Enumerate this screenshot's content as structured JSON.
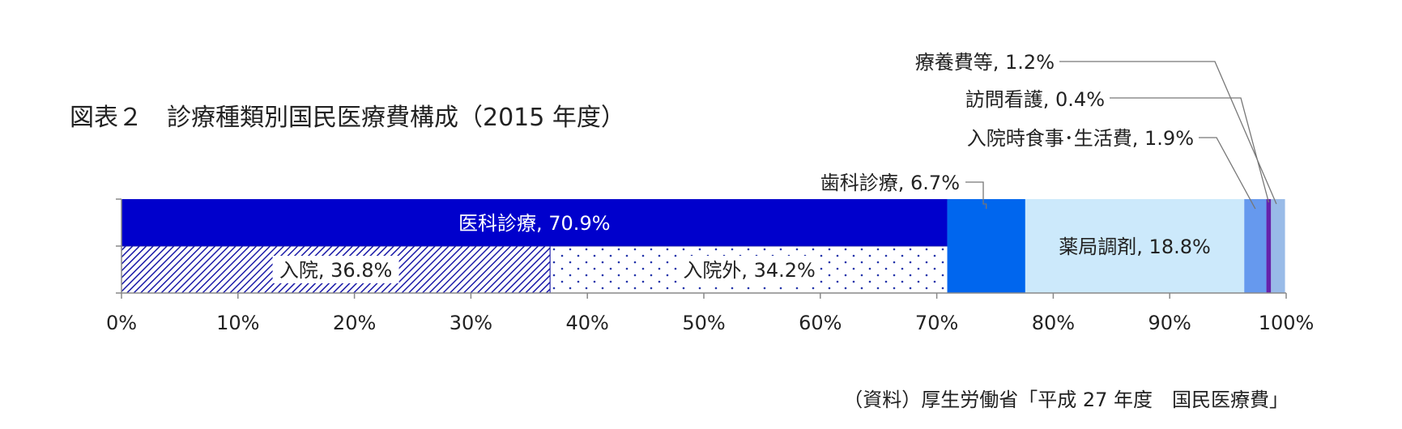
{
  "title": "図表２　診療種類別国民医療費構成（2015 年度）",
  "source": "（資料）厚生労働省「平成 27 年度　国民医療費」",
  "colors": {
    "ika": "#0000cc",
    "nyuin_hatch": "#1a1aa8",
    "dots": "#2233aa",
    "shika": "#0066ee",
    "yakkyoku": "#cce9fb",
    "nyuin_shokuji": "#6699ee",
    "homon": "#6622aa",
    "ryoyo": "#99bbe8",
    "axis": "#888888"
  },
  "chart_data": {
    "type": "bar",
    "orientation": "horizontal-stacked-100",
    "title": "図表２　診療種類別国民医療費構成（2015 年度）",
    "xlim": [
      0,
      100
    ],
    "ticks": [
      "0%",
      "10%",
      "20%",
      "30%",
      "40%",
      "50%",
      "60%",
      "70%",
      "80%",
      "90%",
      "100%"
    ],
    "segments": [
      {
        "name": "医科診療",
        "value": 70.9,
        "label": "医科診療, 70.9%",
        "label_pos": "inside",
        "sub": [
          {
            "name": "入院",
            "value": 36.8,
            "label": "入院, 36.8%",
            "pattern": "hatch"
          },
          {
            "name": "入院外",
            "value": 34.2,
            "label": "入院外, 34.2%",
            "pattern": "dots"
          }
        ]
      },
      {
        "name": "歯科診療",
        "value": 6.7,
        "label": "歯科診療, 6.7%",
        "label_pos": "callout"
      },
      {
        "name": "薬局調剤",
        "value": 18.8,
        "label": "薬局調剤, 18.8%",
        "label_pos": "inside"
      },
      {
        "name": "入院時食事・生活費",
        "value": 1.9,
        "label": "入院時食事･生活費, 1.9%",
        "label_pos": "callout"
      },
      {
        "name": "訪問看護",
        "value": 0.4,
        "label": "訪問看護, 0.4%",
        "label_pos": "callout"
      },
      {
        "name": "療養費等",
        "value": 1.2,
        "label": "療養費等, 1.2%",
        "label_pos": "callout"
      }
    ]
  }
}
